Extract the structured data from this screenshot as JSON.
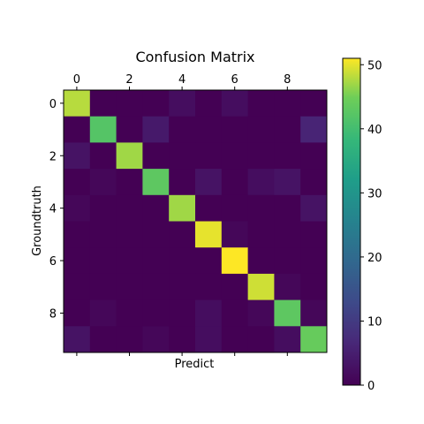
{
  "chart_data": {
    "type": "heatmap",
    "title": "Confusion Matrix",
    "xlabel": "Predict",
    "ylabel": "Groundtruth",
    "x_ticks": [
      "0",
      "2",
      "4",
      "6",
      "8"
    ],
    "y_ticks": [
      "0",
      "2",
      "4",
      "6",
      "8"
    ],
    "x_tick_positions": [
      0,
      2,
      4,
      6,
      8
    ],
    "y_tick_positions": [
      0,
      2,
      4,
      6,
      8
    ],
    "x_axis_position": "top",
    "colormap": "viridis",
    "colorbar": {
      "range": [
        0,
        51
      ],
      "ticks": [
        0,
        10,
        20,
        30,
        40,
        50
      ],
      "tick_labels": [
        "0",
        "10",
        "20",
        "30",
        "40",
        "50"
      ]
    },
    "matrix": [
      [
        48,
        0,
        0,
        0,
        2,
        0,
        2,
        0,
        0,
        0
      ],
      [
        0,
        42,
        0,
        4,
        0,
        0,
        0,
        0,
        0,
        6
      ],
      [
        3,
        0,
        47,
        0,
        0,
        0,
        0,
        0,
        0,
        0
      ],
      [
        0,
        1,
        0,
        43,
        0,
        3,
        0,
        2,
        3,
        0
      ],
      [
        1,
        0,
        0,
        0,
        47,
        0,
        0,
        0,
        0,
        3
      ],
      [
        0,
        0,
        0,
        0,
        0,
        50,
        1,
        0,
        0,
        0
      ],
      [
        0,
        0,
        0,
        0,
        0,
        0,
        51,
        0,
        0,
        0
      ],
      [
        0,
        0,
        0,
        0,
        0,
        0,
        0,
        49,
        1,
        0
      ],
      [
        0,
        1,
        0,
        0,
        0,
        2,
        0,
        1,
        43,
        1
      ],
      [
        3,
        0,
        0,
        1,
        0,
        2,
        0,
        0,
        2,
        44
      ]
    ]
  }
}
